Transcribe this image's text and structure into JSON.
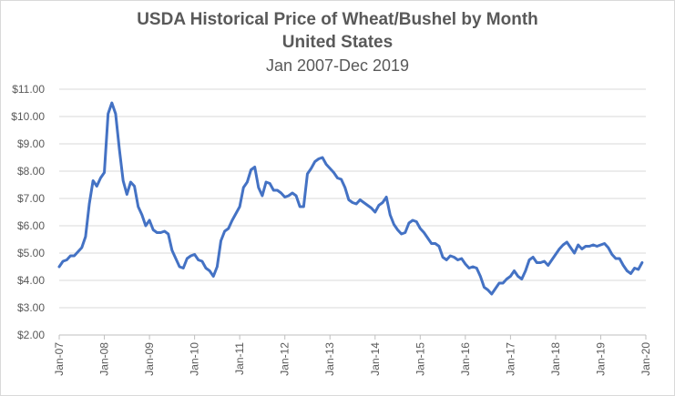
{
  "chart_data": {
    "type": "line",
    "title": "USDA Historical Price of Wheat/Bushel by Month",
    "subtitle": "United States",
    "subtitle2": "Jan 2007-Dec 2019",
    "xlabel": "",
    "ylabel": "",
    "ylim": [
      2,
      11
    ],
    "grid": true,
    "y_ticks": [
      "$2.00",
      "$3.00",
      "$4.00",
      "$5.00",
      "$6.00",
      "$7.00",
      "$8.00",
      "$9.00",
      "$10.00",
      "$11.00"
    ],
    "x_ticks": [
      "Jan-07",
      "Jan-08",
      "Jan-09",
      "Jan-10",
      "Jan-11",
      "Jan-12",
      "Jan-13",
      "Jan-14",
      "Jan-15",
      "Jan-16",
      "Jan-17",
      "Jan-18",
      "Jan-19",
      "Jan-20"
    ],
    "series_color": "#4472c4",
    "series": [
      {
        "values": [
          4.5,
          4.7,
          4.75,
          4.9,
          4.9,
          5.05,
          5.2,
          5.6,
          6.8,
          7.65,
          7.45,
          7.75,
          7.95,
          10.1,
          10.5,
          10.1,
          8.8,
          7.65,
          7.15,
          7.6,
          7.45,
          6.7,
          6.4,
          6.0,
          6.2,
          5.85,
          5.75,
          5.75,
          5.8,
          5.7,
          5.1,
          4.8,
          4.5,
          4.45,
          4.8,
          4.9,
          4.95,
          4.75,
          4.7,
          4.45,
          4.35,
          4.15,
          4.5,
          5.45,
          5.8,
          5.9,
          6.2,
          6.45,
          6.7,
          7.4,
          7.6,
          8.05,
          8.15,
          7.4,
          7.1,
          7.6,
          7.55,
          7.3,
          7.3,
          7.2,
          7.05,
          7.1,
          7.2,
          7.1,
          6.7,
          6.7,
          7.9,
          8.1,
          8.35,
          8.45,
          8.5,
          8.25,
          8.1,
          7.95,
          7.75,
          7.7,
          7.4,
          6.95,
          6.85,
          6.8,
          6.95,
          6.85,
          6.75,
          6.65,
          6.5,
          6.75,
          6.85,
          7.05,
          6.4,
          6.05,
          5.85,
          5.7,
          5.75,
          6.1,
          6.2,
          6.15,
          5.9,
          5.75,
          5.55,
          5.35,
          5.35,
          5.25,
          4.85,
          4.75,
          4.9,
          4.85,
          4.75,
          4.8,
          4.6,
          4.45,
          4.5,
          4.45,
          4.15,
          3.75,
          3.65,
          3.5,
          3.7,
          3.9,
          3.9,
          4.05,
          4.15,
          4.35,
          4.15,
          4.05,
          4.35,
          4.75,
          4.85,
          4.65,
          4.65,
          4.7,
          4.55,
          4.75,
          4.95,
          5.15,
          5.3,
          5.4,
          5.2,
          5.0,
          5.3,
          5.15,
          5.25,
          5.25,
          5.3,
          5.25,
          5.3,
          5.35,
          5.2,
          4.95,
          4.8,
          4.8,
          4.55,
          4.35,
          4.25,
          4.45,
          4.4,
          4.65
        ]
      }
    ]
  }
}
